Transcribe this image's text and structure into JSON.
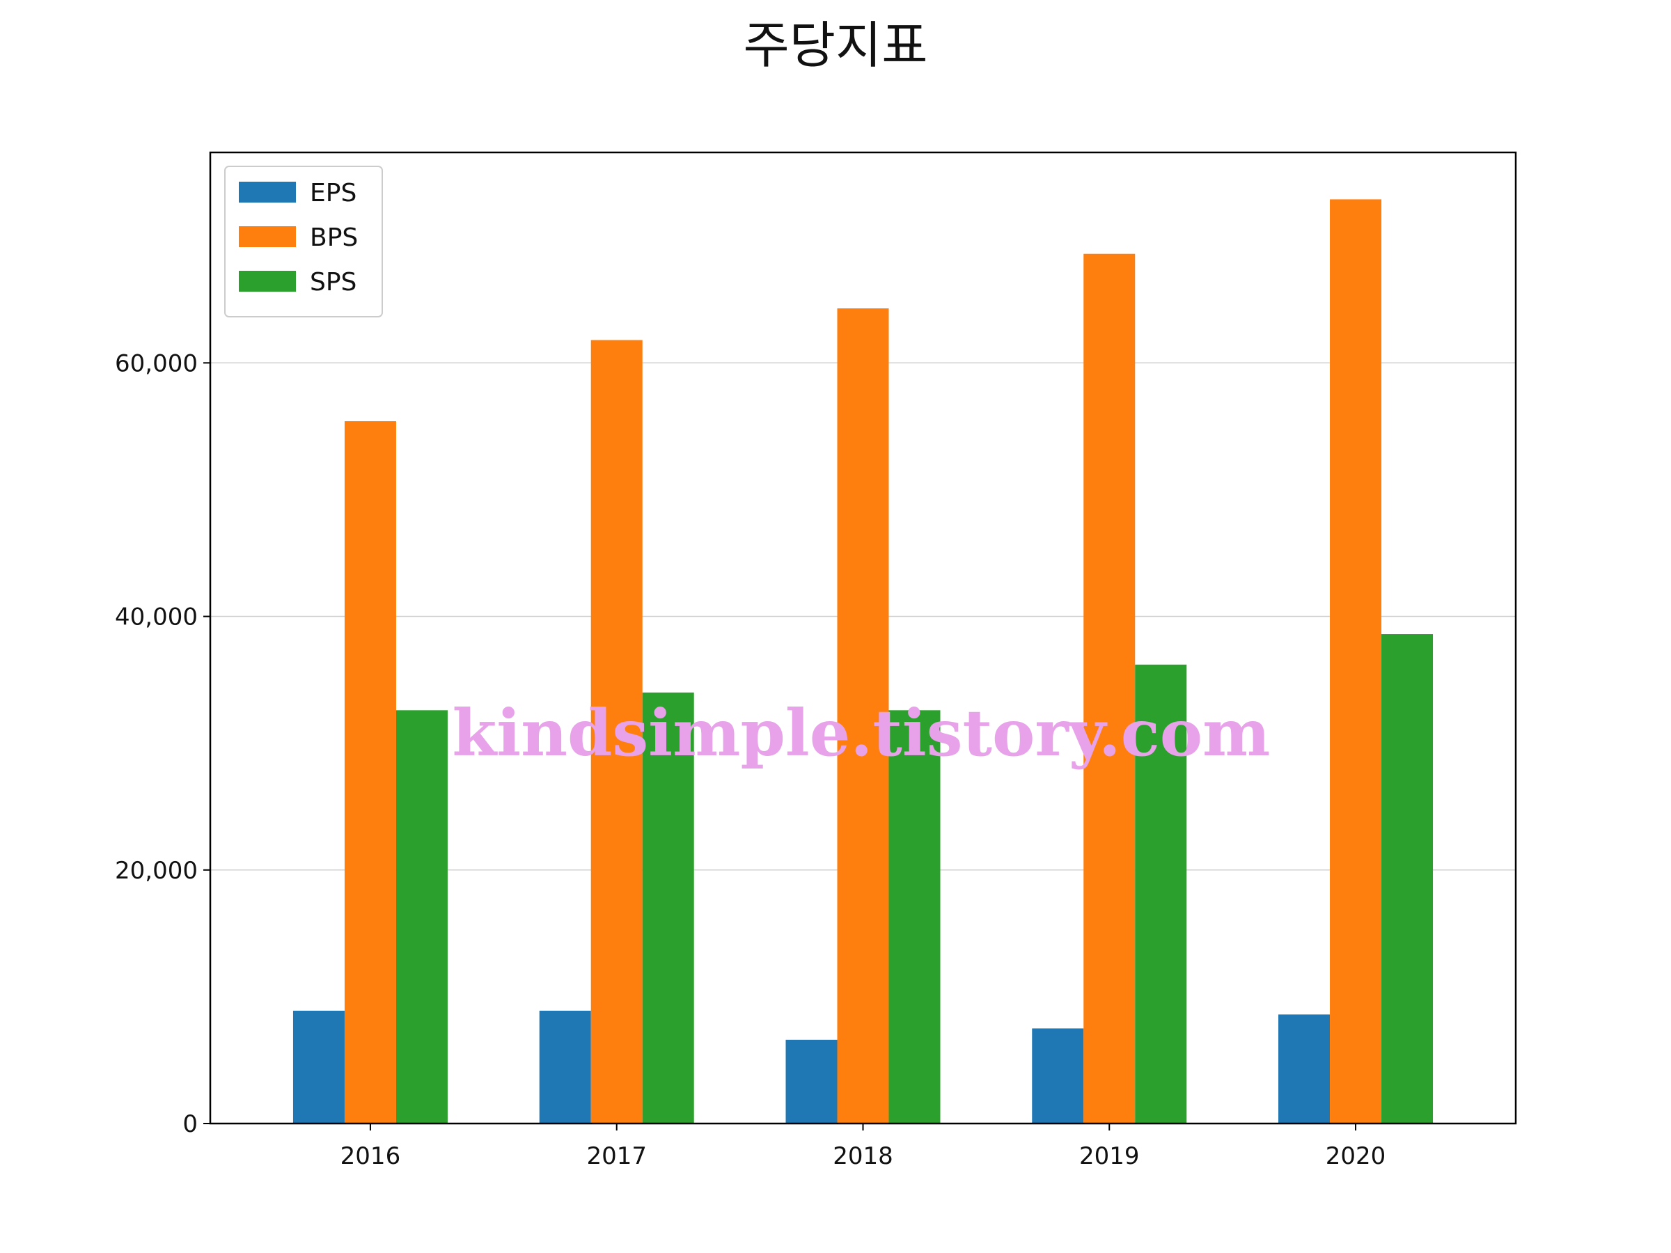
{
  "chart_data": {
    "type": "bar",
    "title": "주당지표",
    "xlabel": "",
    "ylabel": "",
    "categories": [
      "2016",
      "2017",
      "2018",
      "2019",
      "2020"
    ],
    "series": [
      {
        "name": "EPS",
        "color": "#1f77b4",
        "values": [
          8900,
          8900,
          6600,
          7500,
          8600
        ]
      },
      {
        "name": "BPS",
        "color": "#ff7f0e",
        "values": [
          55400,
          61800,
          64300,
          68600,
          72900
        ]
      },
      {
        "name": "SPS",
        "color": "#2ca02c",
        "values": [
          32600,
          34000,
          32600,
          36200,
          38600
        ]
      }
    ],
    "ylim": [
      0,
      76600
    ],
    "yticks": [
      0,
      20000,
      40000,
      60000
    ],
    "ytick_labels": [
      "0",
      "20,000",
      "40,000",
      "60,000"
    ],
    "grid": "y",
    "legend_position": "top-left",
    "watermark": "kindsimple.tistory.com"
  }
}
